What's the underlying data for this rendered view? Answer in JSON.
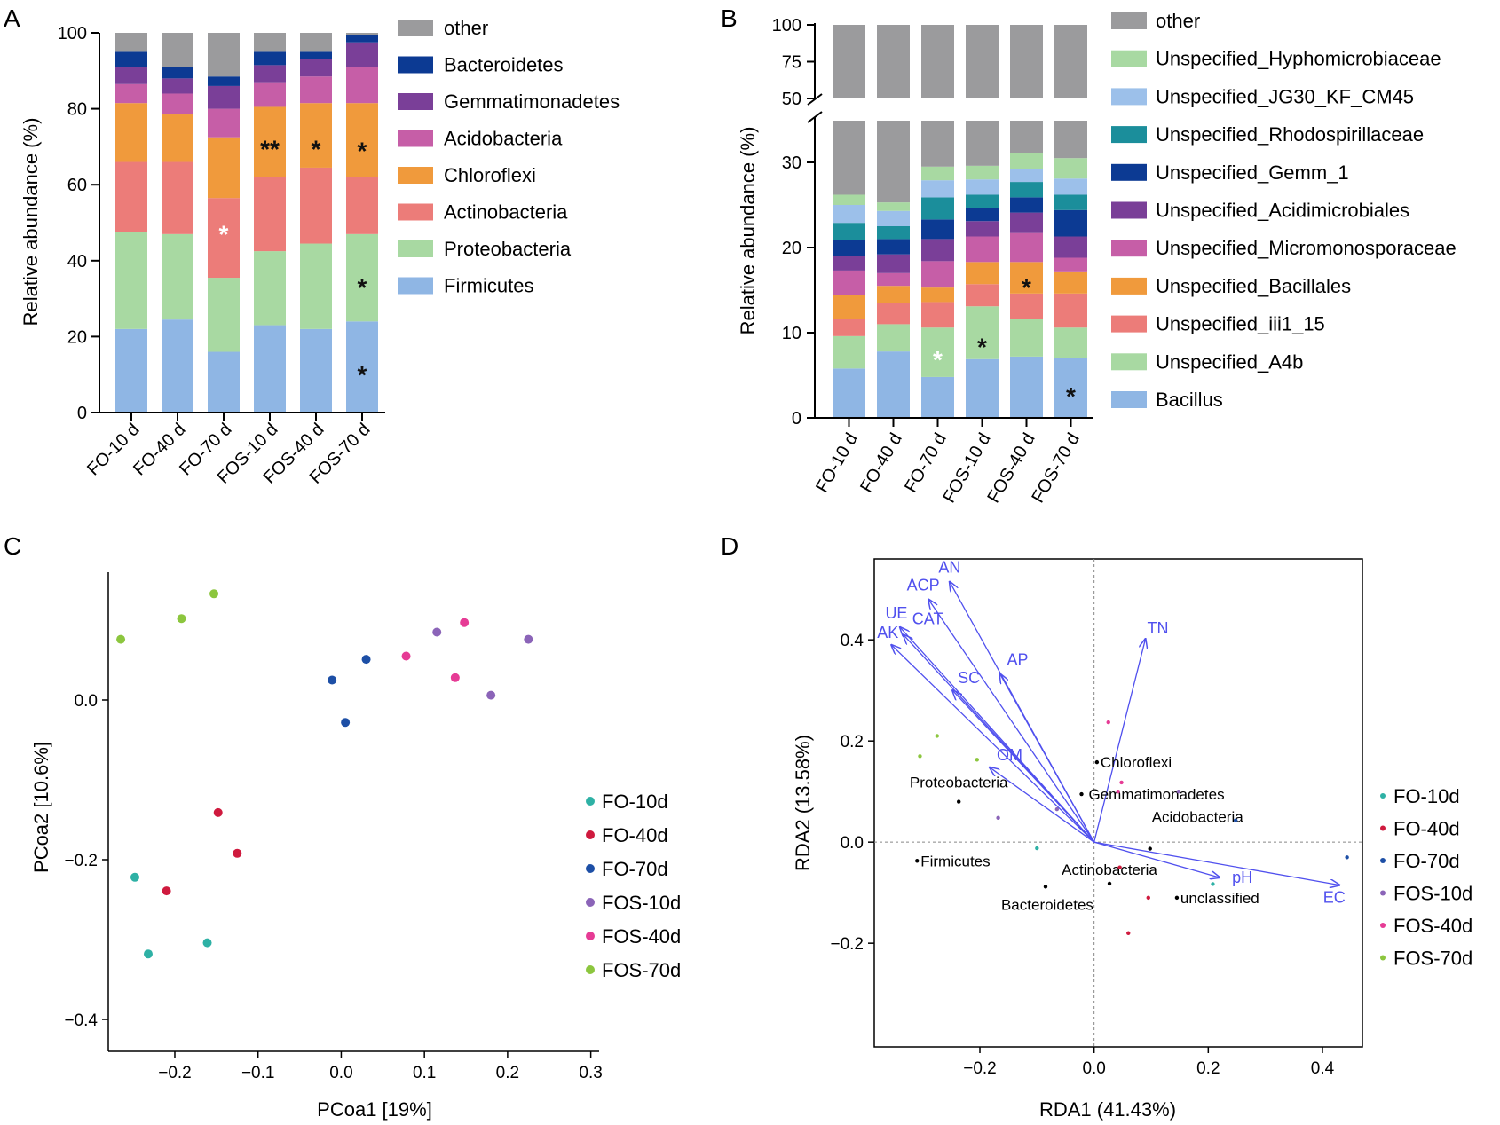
{
  "figure_labels": {
    "a": "A",
    "b": "B",
    "c": "C",
    "d": "D"
  },
  "colors": {
    "other": "#9b9b9d",
    "bacteroidetes": "#0c3a93",
    "gemmatimonadetes": "#7a3f98",
    "acidobacteria": "#c65ea7",
    "chloroflexi": "#f09a3c",
    "actinobacteria": "#ec7c79",
    "proteobacteria": "#a8d9a2",
    "firmicutes": "#8fb6e4",
    "hypho": "#a8d9a2",
    "jg30": "#9cc0ea",
    "rhodo": "#1b8e9b",
    "gemm1": "#0c3a93",
    "acidimicro": "#7a3f98",
    "micromono": "#c65ea7",
    "bacillales": "#f09a3c",
    "iii1": "#ec7c79",
    "a4b": "#a8d9a2",
    "bacillus": "#8fb6e4",
    "arrow": "#5050ee",
    "fo10": "#2eb1a5",
    "fo40": "#cf1a3e",
    "fo70": "#1d4fa6",
    "fos10": "#8b64b8",
    "fos40": "#e63b95",
    "fos70": "#8cc63e"
  },
  "chart_data": [
    {
      "id": "A",
      "type": "bar",
      "stacked": true,
      "ylabel": "Relative abundance (%)",
      "ylim": [
        0,
        100
      ],
      "yticks": [
        "0",
        "20",
        "40",
        "60",
        "80",
        "100"
      ],
      "categories": [
        "FO-10 d",
        "FO-40 d",
        "FO-70 d",
        "FOS-10 d",
        "FOS-40 d",
        "FOS-70 d"
      ],
      "series": [
        {
          "name": "Firmicutes",
          "key": "firmicutes",
          "values": [
            22,
            24.5,
            16,
            23,
            22,
            24
          ]
        },
        {
          "name": "Proteobacteria",
          "key": "proteobacteria",
          "values": [
            25.5,
            22.5,
            19.5,
            19.5,
            22.5,
            23
          ]
        },
        {
          "name": "Actinobacteria",
          "key": "actinobacteria",
          "values": [
            18.5,
            19,
            21,
            19.5,
            20,
            15
          ]
        },
        {
          "name": "Chloroflexi",
          "key": "chloroflexi",
          "values": [
            15.5,
            12.5,
            16,
            18.5,
            17,
            19.5
          ]
        },
        {
          "name": "Acidobacteria",
          "key": "acidobacteria",
          "values": [
            5,
            5.5,
            7.5,
            6.5,
            7,
            9.5
          ]
        },
        {
          "name": "Gemmatimonadetes",
          "key": "gemmatimonadetes",
          "values": [
            4.5,
            4,
            6,
            4.5,
            4.5,
            6.5
          ]
        },
        {
          "name": "Bacteroidetes",
          "key": "bacteroidetes",
          "values": [
            4,
            3,
            2.5,
            3.5,
            2,
            2
          ]
        },
        {
          "name": "other",
          "key": "other",
          "values": [
            5,
            9,
            11.5,
            5,
            5,
            0.5
          ]
        }
      ],
      "legend": [
        "other",
        "Bacteroidetes",
        "Gemmatimonadetes",
        "Acidobacteria",
        "Chloroflexi",
        "Actinobacteria",
        "Proteobacteria",
        "Firmicutes"
      ],
      "annotations": [
        {
          "category": 2,
          "y": 48,
          "text": "*",
          "color": "white"
        },
        {
          "category": 3,
          "y": 70.5,
          "text": "**",
          "color": "black"
        },
        {
          "category": 4,
          "y": 70.5,
          "text": "*",
          "color": "black"
        },
        {
          "category": 5,
          "y": 70,
          "text": "*",
          "color": "black"
        },
        {
          "category": 5,
          "y": 34,
          "text": "*",
          "color": "black"
        },
        {
          "category": 5,
          "y": 11,
          "text": "*",
          "color": "black"
        }
      ]
    },
    {
      "id": "B",
      "type": "bar",
      "stacked": true,
      "broken_axis": true,
      "ylabel": "Relative abundance (%)",
      "lower_ylim": [
        0,
        35
      ],
      "upper_ylim": [
        50,
        100
      ],
      "yticks_lower": [
        "0",
        "10",
        "20",
        "30"
      ],
      "yticks_upper": [
        "50",
        "75",
        "100"
      ],
      "categories": [
        "FO-10 d",
        "FO-40 d",
        "FO-70 d",
        "FOS-10 d",
        "FOS-40 d",
        "FOS-70 d"
      ],
      "series": [
        {
          "name": "Bacillus",
          "key": "bacillus",
          "values": [
            5.8,
            7.8,
            4.8,
            6.9,
            7.2,
            7.0
          ]
        },
        {
          "name": "Unspecified_A4b",
          "key": "a4b",
          "values": [
            3.8,
            3.2,
            5.8,
            6.2,
            4.4,
            3.6
          ]
        },
        {
          "name": "Unspecified_iii1_15",
          "key": "iii1",
          "values": [
            2.0,
            2.5,
            3.0,
            2.6,
            3.0,
            4.0
          ]
        },
        {
          "name": "Unspecified_Bacillales",
          "key": "bacillales",
          "values": [
            2.8,
            2.0,
            1.7,
            2.6,
            3.7,
            2.5
          ]
        },
        {
          "name": "Unspecified_Micromonosporaceae",
          "key": "micromono",
          "values": [
            2.9,
            1.5,
            3.1,
            3.0,
            3.4,
            1.7
          ]
        },
        {
          "name": "Unspecified_Acidimicrobiales",
          "key": "acidimicro",
          "values": [
            1.7,
            2.2,
            2.6,
            1.8,
            2.4,
            2.5
          ]
        },
        {
          "name": "Unspecified_Gemm_1",
          "key": "gemm1",
          "values": [
            1.9,
            1.8,
            2.3,
            1.5,
            1.8,
            3.1
          ]
        },
        {
          "name": "Unspecified_Rhodospirillaceae",
          "key": "rhodo",
          "values": [
            2.0,
            1.5,
            2.6,
            1.6,
            1.8,
            1.8
          ]
        },
        {
          "name": "Unspecified_JG30_KF_CM45",
          "key": "jg30",
          "values": [
            2.1,
            1.8,
            2.0,
            1.8,
            1.5,
            1.9
          ]
        },
        {
          "name": "Unspecified_Hyphomicrobiaceae",
          "key": "hypho",
          "values": [
            1.2,
            1.0,
            1.6,
            1.6,
            1.9,
            2.4
          ]
        },
        {
          "name": "other",
          "key": "other",
          "values": [
            73.8,
            74.7,
            70.3,
            70.4,
            68.9,
            69.5
          ]
        }
      ],
      "legend": [
        "other",
        "Unspecified_Hyphomicrobiaceae",
        "Unspecified_JG30_KF_CM45",
        "Unspecified_Rhodospirillaceae",
        "Unspecified_Gemm_1",
        "Unspecified_Acidimicrobiales",
        "Unspecified_Micromonosporaceae",
        "Unspecified_Bacillales",
        "Unspecified_iii1_15",
        "Unspecified_A4b",
        "Bacillus"
      ],
      "annotations": [
        {
          "category": 2,
          "y": 7.3,
          "text": "*",
          "color": "white"
        },
        {
          "category": 3,
          "y": 8.8,
          "text": "*",
          "color": "black"
        },
        {
          "category": 4,
          "y": 15.8,
          "text": "*",
          "color": "black"
        },
        {
          "category": 5,
          "y": 3.0,
          "text": "*",
          "color": "black"
        }
      ]
    },
    {
      "id": "C",
      "type": "scatter",
      "xlabel": "PCoa1 [19%]",
      "ylabel": "PCoa2 [10.6%]",
      "xlim": [
        -0.28,
        0.31
      ],
      "ylim": [
        -0.44,
        0.16
      ],
      "xticks": [
        -0.2,
        -0.1,
        0.0,
        0.1,
        0.2,
        0.3
      ],
      "xtick_labels": [
        "−0.2",
        "−0.1",
        "0.0",
        "0.1",
        "0.2",
        "0.3"
      ],
      "yticks": [
        0.0,
        -0.2,
        -0.4
      ],
      "ytick_labels": [
        "0.0",
        "−0.2",
        "−0.4"
      ],
      "series": [
        {
          "name": "FO-10d",
          "key": "fo10",
          "points": [
            [
              -0.248,
              -0.222
            ],
            [
              -0.232,
              -0.318
            ],
            [
              -0.161,
              -0.304
            ]
          ]
        },
        {
          "name": "FO-40d",
          "key": "fo40",
          "points": [
            [
              -0.148,
              -0.141
            ],
            [
              -0.125,
              -0.192
            ],
            [
              -0.21,
              -0.239
            ]
          ]
        },
        {
          "name": "FO-70d",
          "key": "fo70",
          "points": [
            [
              0.03,
              0.051
            ],
            [
              -0.011,
              0.025
            ],
            [
              0.005,
              -0.028
            ]
          ]
        },
        {
          "name": "FOS-10d",
          "key": "fos10",
          "points": [
            [
              0.115,
              0.085
            ],
            [
              0.225,
              0.076
            ],
            [
              0.18,
              0.006
            ]
          ]
        },
        {
          "name": "FOS-40d",
          "key": "fos40",
          "points": [
            [
              0.148,
              0.097
            ],
            [
              0.078,
              0.055
            ],
            [
              0.137,
              0.028
            ]
          ]
        },
        {
          "name": "FOS-70d",
          "key": "fos70",
          "points": [
            [
              -0.265,
              0.076
            ],
            [
              -0.192,
              0.102
            ],
            [
              -0.153,
              0.133
            ]
          ]
        }
      ]
    },
    {
      "id": "D",
      "type": "scatter",
      "subtype": "rda-biplot",
      "xlabel": "RDA1 (41.43%)",
      "ylabel": "RDA2 (13.58%)",
      "xlim": [
        -0.385,
        0.47
      ],
      "ylim": [
        -0.405,
        0.56
      ],
      "xticks": [
        -0.2,
        0.0,
        0.2,
        0.4
      ],
      "xtick_labels": [
        "−0.2",
        "0.0",
        "0.2",
        "0.4"
      ],
      "yticks": [
        0.4,
        0.2,
        0.0,
        -0.2
      ],
      "ytick_labels": [
        "0.4",
        "0.2",
        "0.0",
        "−0.2"
      ],
      "arrows": [
        {
          "label": "AN",
          "x": -0.253,
          "y": 0.515
        },
        {
          "label": "ACP",
          "x": -0.29,
          "y": 0.48
        },
        {
          "label": "UE",
          "x": -0.34,
          "y": 0.425
        },
        {
          "label": "CAT",
          "x": -0.334,
          "y": 0.41
        },
        {
          "label": "AK",
          "x": -0.355,
          "y": 0.39
        },
        {
          "label": "AP",
          "x": -0.165,
          "y": 0.333
        },
        {
          "label": "SC",
          "x": -0.248,
          "y": 0.3
        },
        {
          "label": "OM",
          "x": -0.183,
          "y": 0.148
        },
        {
          "label": "TN",
          "x": 0.09,
          "y": 0.402
        },
        {
          "label": "pH",
          "x": 0.22,
          "y": -0.07
        },
        {
          "label": "EC",
          "x": 0.43,
          "y": -0.085
        }
      ],
      "taxa": [
        {
          "label": "Chloroflexi",
          "x": 0.005,
          "y": 0.158
        },
        {
          "label": "Gemmatimonadetes",
          "x": -0.022,
          "y": 0.095
        },
        {
          "label": "Proteobacteria",
          "x": -0.237,
          "y": 0.08
        },
        {
          "label": "Acidobacteria",
          "x": 0.098,
          "y": -0.013
        },
        {
          "label": "Firmicutes",
          "x": -0.31,
          "y": -0.037
        },
        {
          "label": "Actinobacteria",
          "x": 0.027,
          "y": -0.082
        },
        {
          "label": "Bacteroidetes",
          "x": -0.085,
          "y": -0.088
        },
        {
          "label": "unclassified",
          "x": 0.145,
          "y": -0.11
        }
      ],
      "series": [
        {
          "name": "FO-10d",
          "key": "fo10",
          "points": [
            [
              -0.1,
              -0.012
            ],
            [
              0.208,
              -0.083
            ]
          ]
        },
        {
          "name": "FO-40d",
          "key": "fo40",
          "points": [
            [
              0.045,
              -0.05
            ],
            [
              0.095,
              -0.11
            ],
            [
              0.06,
              -0.18
            ]
          ]
        },
        {
          "name": "FO-70d",
          "key": "fo70",
          "points": [
            [
              0.248,
              0.043
            ],
            [
              0.443,
              -0.03
            ]
          ]
        },
        {
          "name": "FOS-10d",
          "key": "fos10",
          "points": [
            [
              -0.168,
              0.048
            ],
            [
              -0.065,
              0.065
            ],
            [
              0.148,
              0.1
            ]
          ]
        },
        {
          "name": "FOS-40d",
          "key": "fos40",
          "points": [
            [
              0.025,
              0.237
            ],
            [
              0.042,
              0.1
            ],
            [
              0.048,
              0.118
            ]
          ]
        },
        {
          "name": "FOS-70d",
          "key": "fos70",
          "points": [
            [
              -0.275,
              0.21
            ],
            [
              -0.305,
              0.17
            ],
            [
              -0.205,
              0.163
            ]
          ]
        }
      ]
    }
  ]
}
